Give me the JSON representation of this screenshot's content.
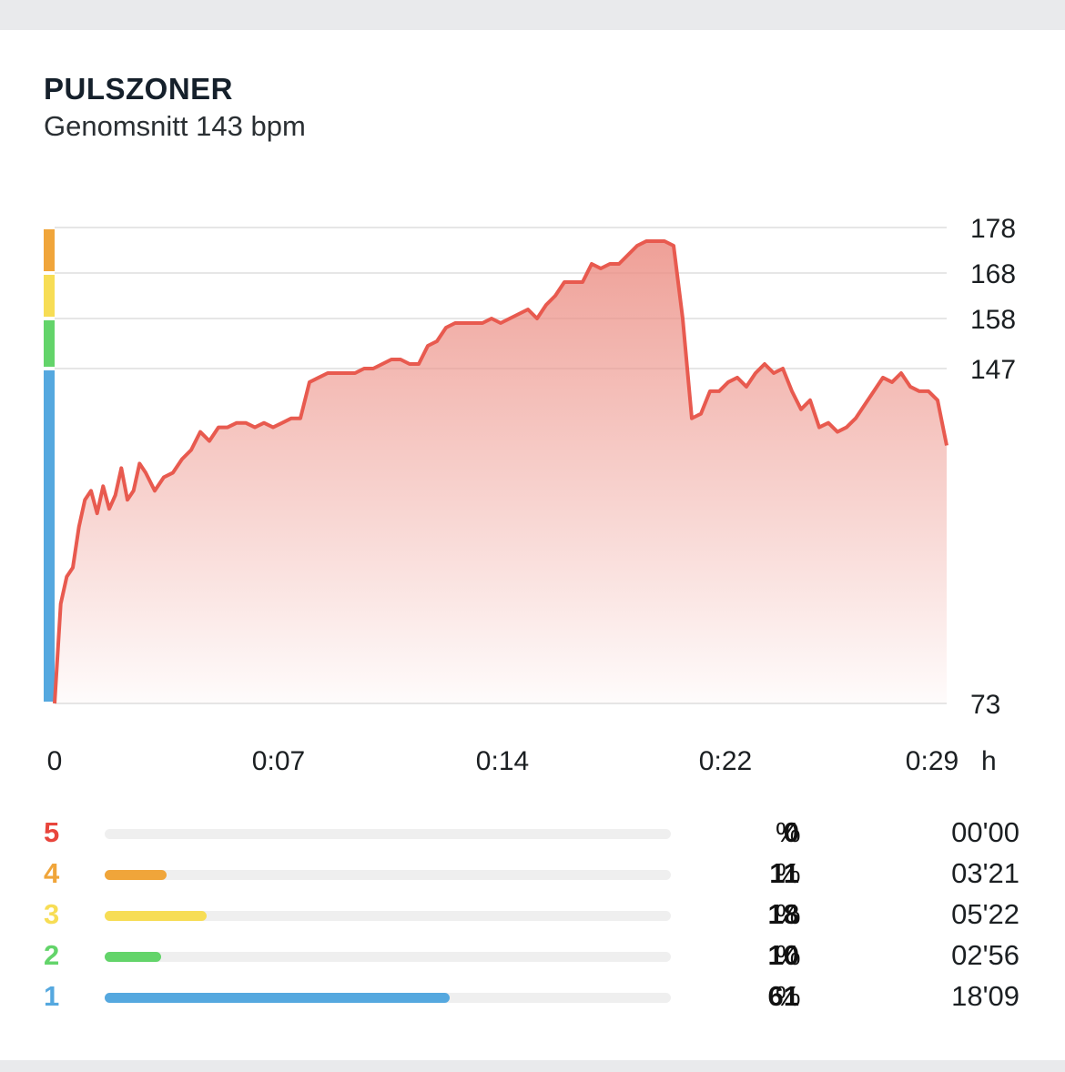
{
  "header": {
    "title": "PULSZONER",
    "subtitle": "Genomsnitt 143 bpm"
  },
  "chart_data": {
    "type": "area",
    "ylabel": "",
    "xlabel": "h",
    "y_ticks": [
      178,
      168,
      158,
      147,
      73
    ],
    "x_ticks": [
      "0",
      "0:07",
      "0:14",
      "0:22",
      "0:29"
    ],
    "x_unit": "h",
    "xlim_minutes": [
      0,
      29.4
    ],
    "ylim": [
      73,
      178
    ],
    "line_color": "#e85a4f",
    "series": [
      {
        "x_minutes": [
          0,
          0.2,
          0.4,
          0.6,
          0.8,
          1.0,
          1.2,
          1.4,
          1.6,
          1.8,
          2.0,
          2.2,
          2.4,
          2.6,
          2.8,
          3.0,
          3.3,
          3.6,
          3.9,
          4.2,
          4.5,
          4.8,
          5.1,
          5.4,
          5.7,
          6.0,
          6.3,
          6.6,
          6.9,
          7.2,
          7.5,
          7.8,
          8.1,
          8.4,
          8.7,
          9.0,
          9.3,
          9.6,
          9.9,
          10.2,
          10.5,
          10.8,
          11.1,
          11.4,
          11.7,
          12.0,
          12.3,
          12.6,
          12.9,
          13.2,
          13.5,
          13.8,
          14.1,
          14.4,
          14.7,
          15.0,
          15.3,
          15.6,
          15.9,
          16.2,
          16.5,
          16.8,
          17.1,
          17.4,
          17.7,
          18.0,
          18.3,
          18.6,
          18.9,
          19.2,
          19.5,
          19.8,
          20.1,
          20.4,
          20.7,
          21.0,
          21.3,
          21.6,
          21.9,
          22.2,
          22.5,
          22.8,
          23.1,
          23.4,
          23.7,
          24.0,
          24.3,
          24.6,
          24.9,
          25.2,
          25.5,
          25.8,
          26.1,
          26.4,
          26.7,
          27.0,
          27.3,
          27.6,
          27.9,
          28.2,
          28.5,
          28.8,
          29.1,
          29.4
        ],
        "values": [
          73,
          95,
          101,
          103,
          112,
          118,
          120,
          115,
          121,
          116,
          119,
          125,
          118,
          120,
          126,
          124,
          120,
          123,
          124,
          127,
          129,
          133,
          131,
          134,
          134,
          135,
          135,
          134,
          135,
          134,
          135,
          136,
          136,
          144,
          145,
          146,
          146,
          146,
          146,
          147,
          147,
          148,
          149,
          149,
          148,
          148,
          152,
          153,
          156,
          157,
          157,
          157,
          157,
          158,
          157,
          158,
          159,
          160,
          158,
          161,
          163,
          166,
          166,
          166,
          170,
          169,
          170,
          170,
          172,
          174,
          175,
          175,
          175,
          174,
          158,
          136,
          137,
          142,
          142,
          144,
          145,
          143,
          146,
          148,
          146,
          147,
          142,
          138,
          140,
          134,
          135,
          133,
          134,
          136,
          139,
          142,
          145,
          144,
          146,
          143,
          142,
          142,
          140,
          130
        ]
      }
    ]
  },
  "zones": [
    {
      "zone": "5",
      "color": "#e8453c",
      "fraction": 0.0,
      "percent": "0",
      "time": "00'00"
    },
    {
      "zone": "4",
      "color": "#f0a53a",
      "fraction": 0.11,
      "percent": "11",
      "time": "03'21"
    },
    {
      "zone": "3",
      "color": "#f7dd55",
      "fraction": 0.18,
      "percent": "18",
      "time": "05'22"
    },
    {
      "zone": "2",
      "color": "#63d46a",
      "fraction": 0.1,
      "percent": "10",
      "time": "02'56"
    },
    {
      "zone": "1",
      "color": "#55a8df",
      "fraction": 0.61,
      "percent": "61",
      "time": "18'09"
    }
  ],
  "percent_sign": "%"
}
